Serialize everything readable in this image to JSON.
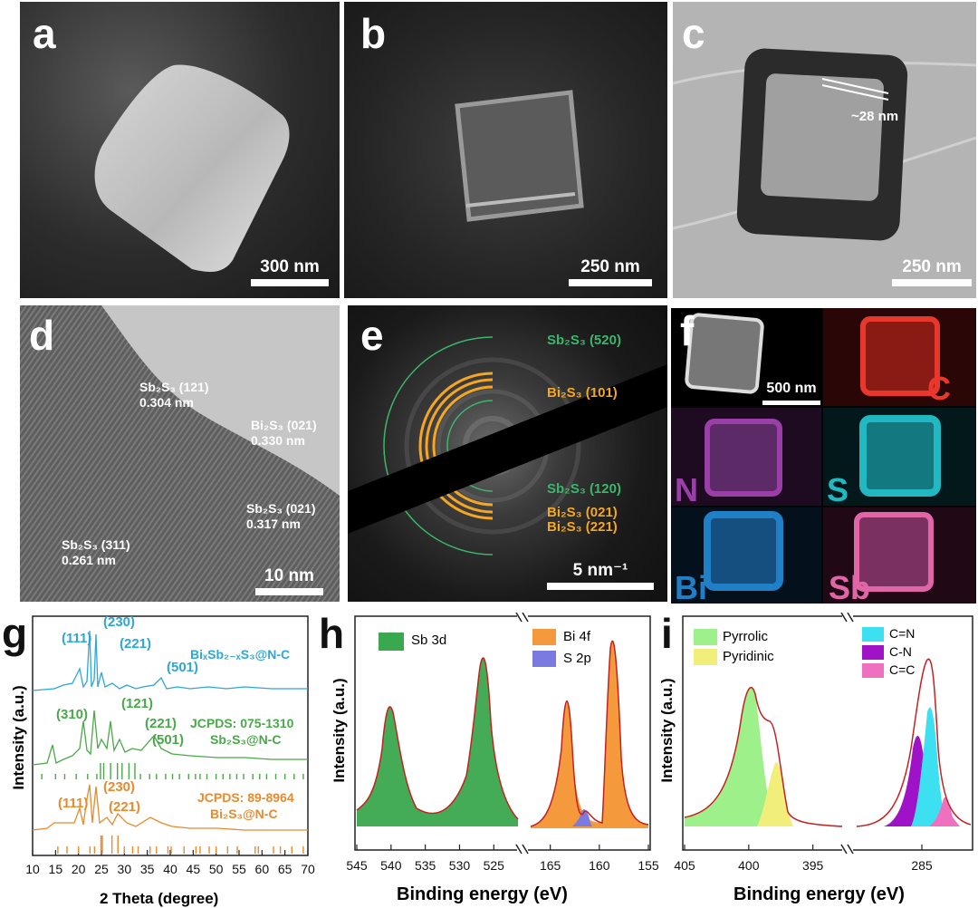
{
  "panel_a": {
    "letter": "a",
    "scale_bar": "300 nm"
  },
  "panel_b": {
    "letter": "b",
    "scale_bar": "250 nm"
  },
  "panel_c": {
    "letter": "c",
    "scale_bar": "250 nm",
    "annotation": "~28 nm"
  },
  "panel_d": {
    "letter": "d",
    "scale_bar": "10 nm",
    "lattice": [
      {
        "phase": "Sb₂S₃ (121)",
        "d": "0.304 nm"
      },
      {
        "phase": "Bi₂S₃ (021)",
        "d": "0.330 nm"
      },
      {
        "phase": "Sb₂S₃ (021)",
        "d": "0.317 nm"
      },
      {
        "phase": "Sb₂S₃ (311)",
        "d": "0.261 nm"
      }
    ]
  },
  "panel_e": {
    "letter": "e",
    "scale_bar": "5 nm⁻¹",
    "rings": [
      {
        "label": "Sb₂S₃ (520)",
        "color": "#3bb66b"
      },
      {
        "label": "Bi₂S₃ (101)",
        "color": "#f5a623"
      },
      {
        "label": "Sb₂S₃ (120)",
        "color": "#3bb66b"
      },
      {
        "label": "Bi₂S₃ (021)",
        "color": "#f5a623"
      },
      {
        "label": "Bi₂S₃ (221)",
        "color": "#f5a623"
      }
    ]
  },
  "panel_f": {
    "letter": "f",
    "scale_bar": "500 nm",
    "maps": [
      {
        "element": "C",
        "color": "#e8382c"
      },
      {
        "element": "N",
        "color": "#9a3fa8"
      },
      {
        "element": "S",
        "color": "#22b8c2"
      },
      {
        "element": "Bi",
        "color": "#1f80c8"
      },
      {
        "element": "Sb",
        "color": "#e066a8"
      }
    ]
  },
  "chart_data": [
    {
      "panel": "g",
      "type": "line",
      "xlabel": "2 Theta (degree)",
      "ylabel": "Intensity (a.u.)",
      "xlim": [
        10,
        70
      ],
      "x_ticks": [
        "10",
        "15",
        "20",
        "25",
        "30",
        "35",
        "40",
        "45",
        "50",
        "55",
        "60",
        "65",
        "70"
      ],
      "series": [
        {
          "name": "BiₓSb₂₋ₓS₃@N-C",
          "color": "#2ea6d6",
          "peaks": [
            "(111)",
            "(230)",
            "(221)",
            "(501)"
          ]
        },
        {
          "name": "Sb₂S₃@N-C",
          "color": "#4aa84a",
          "reference": "JCPDS: 075-1310",
          "peaks": [
            "(310)",
            "(121)",
            "(221)",
            "(501)"
          ]
        },
        {
          "name": "Bi₂S₃@N-C",
          "color": "#e88a2e",
          "reference": "JCPDS: 89-8964",
          "peaks": [
            "(111)",
            "(230)",
            "(221)"
          ]
        }
      ]
    },
    {
      "panel": "h",
      "type": "line",
      "xlabel": "Binding energy (eV)",
      "ylabel": "Intensity (a.u.)",
      "segments": [
        {
          "xlim": [
            545,
            522
          ],
          "x_ticks": [
            "545",
            "540",
            "535",
            "530",
            "525"
          ]
        },
        {
          "xlim": [
            167,
            155
          ],
          "x_ticks": [
            "165",
            "160",
            "155"
          ]
        }
      ],
      "legend": [
        {
          "name": "Sb 3d",
          "color": "#3aa84e"
        },
        {
          "name": "Bi 4f",
          "color": "#f59a3c"
        },
        {
          "name": "S 2p",
          "color": "#7b7ae0"
        }
      ]
    },
    {
      "panel": "i",
      "type": "line",
      "xlabel": "Binding energy (eV)",
      "ylabel": "Intensity (a.u.)",
      "segments": [
        {
          "xlim": [
            405,
            393
          ],
          "x_ticks": [
            "405",
            "400",
            "395"
          ]
        },
        {
          "xlim": [
            289,
            282
          ],
          "x_ticks": [
            "285"
          ]
        }
      ],
      "legend": [
        {
          "name": "Pyrrolic",
          "color": "#9ef08a"
        },
        {
          "name": "Pyridinic",
          "color": "#f2ee7a"
        },
        {
          "name": "C=N",
          "color": "#3de0f0"
        },
        {
          "name": "C-N",
          "color": "#a012c8"
        },
        {
          "name": "C=C",
          "color": "#f070c0"
        }
      ]
    }
  ]
}
